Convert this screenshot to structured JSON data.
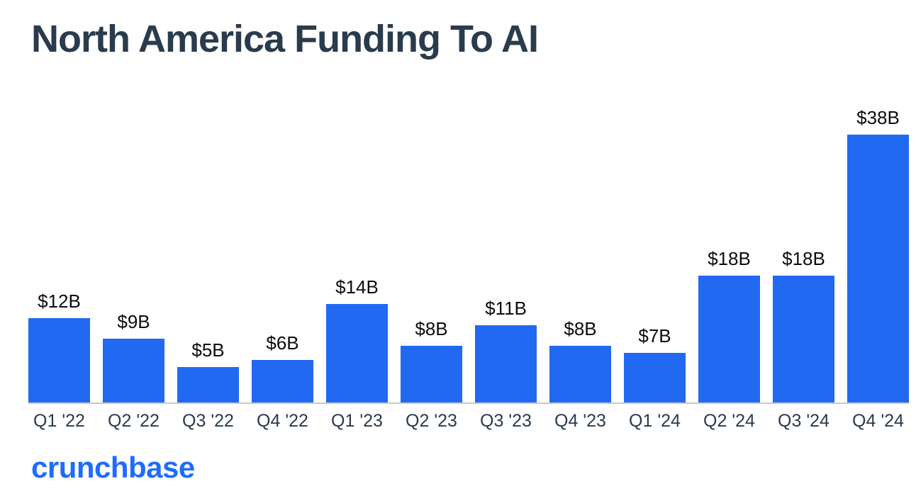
{
  "page": {
    "logo": "crunchbase"
  },
  "colors": {
    "bar": "#2269f2",
    "title": "#2a3b4d",
    "logo": "#1f6bff",
    "axis": "#c8c8c8",
    "value_label": "#0d0d0d"
  },
  "chart_data": {
    "type": "bar",
    "title": "North America Funding To AI",
    "categories": [
      "Q1 '22",
      "Q2 '22",
      "Q3 '22",
      "Q4 '22",
      "Q1 '23",
      "Q2 '23",
      "Q3 '23",
      "Q4 '23",
      "Q1 '24",
      "Q2 '24",
      "Q3 '24",
      "Q4 '24"
    ],
    "values": [
      12,
      9,
      5,
      6,
      14,
      8,
      11,
      8,
      7,
      18,
      18,
      38
    ],
    "value_labels": [
      "$12B",
      "$9B",
      "$5B",
      "$6B",
      "$14B",
      "$8B",
      "$11B",
      "$8B",
      "$7B",
      "$18B",
      "$18B",
      "$38B"
    ],
    "ylim": [
      0,
      38
    ],
    "grid": false,
    "legend": false,
    "xlabel": "",
    "ylabel": ""
  }
}
